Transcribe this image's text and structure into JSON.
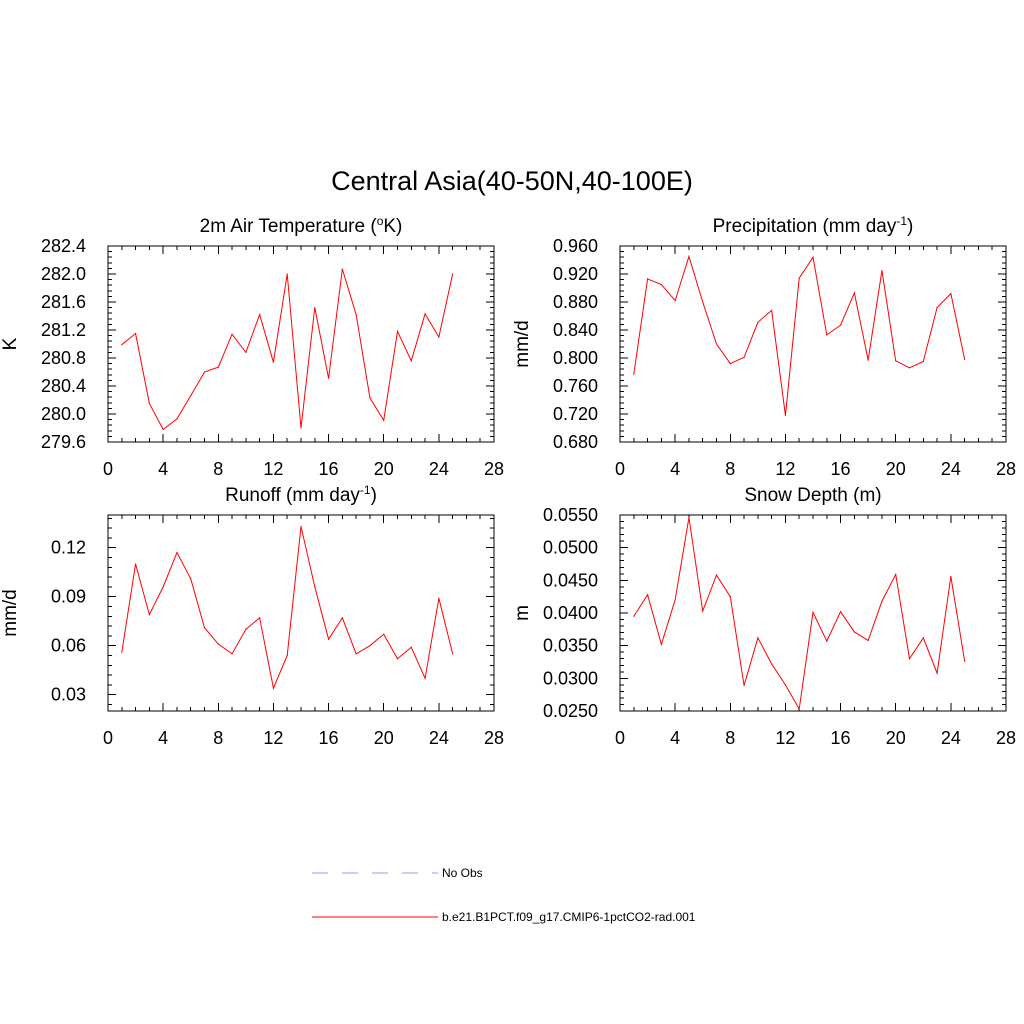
{
  "figure": {
    "title": "Central Asia(40-50N,40-100E)"
  },
  "colors": {
    "model": "#ff0000",
    "obs": "#9999ff"
  },
  "legend": [
    {
      "label": "No Obs",
      "style": "dashed",
      "color": "#9999ff"
    },
    {
      "label": "b.e21.B1PCT.f09_g17.CMIP6-1pctCO2-rad.001",
      "style": "solid",
      "color": "#ff0000"
    }
  ],
  "chart_data": [
    {
      "type": "line",
      "title": "2m Air Temperature (",
      "title_sup": "o",
      "title_end": "K)",
      "ylabel": "K",
      "xlim": [
        0,
        28
      ],
      "ylim": [
        279.6,
        282.4
      ],
      "xticks": [
        0,
        4,
        8,
        12,
        16,
        20,
        24,
        28
      ],
      "yticks": [
        279.6,
        280.0,
        280.4,
        280.8,
        281.2,
        281.6,
        282.0,
        282.4
      ],
      "ytick_labels": [
        "279.6",
        "280.0",
        "280.4",
        "280.8",
        "281.2",
        "281.6",
        "282.0",
        "282.4"
      ],
      "series": [
        {
          "x": [
            1,
            2,
            3,
            4,
            5,
            6,
            7,
            8,
            9,
            10,
            11,
            12,
            13,
            14,
            15,
            16,
            17,
            18,
            19,
            20,
            21,
            22,
            23,
            24,
            25
          ],
          "values": [
            280.99,
            281.15,
            280.15,
            279.78,
            279.93,
            280.26,
            280.6,
            280.67,
            281.14,
            280.88,
            281.42,
            280.74,
            282.0,
            279.8,
            281.52,
            280.51,
            282.07,
            281.42,
            280.23,
            279.91,
            281.18,
            280.76,
            281.43,
            281.1,
            282.0
          ]
        }
      ]
    },
    {
      "type": "line",
      "title": "Precipitation (mm day",
      "title_sup": "-1",
      "title_end": ")",
      "ylabel": "mm/d",
      "xlim": [
        0,
        28
      ],
      "ylim": [
        0.68,
        0.96
      ],
      "xticks": [
        0,
        4,
        8,
        12,
        16,
        20,
        24,
        28
      ],
      "yticks": [
        0.68,
        0.72,
        0.76,
        0.8,
        0.84,
        0.88,
        0.92,
        0.96
      ],
      "ytick_labels": [
        "0.680",
        "0.720",
        "0.760",
        "0.800",
        "0.840",
        "0.880",
        "0.920",
        "0.960"
      ],
      "series": [
        {
          "x": [
            1,
            2,
            3,
            4,
            5,
            6,
            7,
            8,
            9,
            10,
            11,
            12,
            13,
            14,
            15,
            16,
            17,
            18,
            19,
            20,
            21,
            22,
            23,
            24,
            25
          ],
          "values": [
            0.777,
            0.913,
            0.905,
            0.882,
            0.945,
            0.88,
            0.82,
            0.792,
            0.801,
            0.851,
            0.868,
            0.718,
            0.914,
            0.944,
            0.833,
            0.847,
            0.893,
            0.797,
            0.925,
            0.796,
            0.786,
            0.795,
            0.872,
            0.892,
            0.798
          ]
        }
      ]
    },
    {
      "type": "line",
      "title": "Runoff (mm day",
      "title_sup": "-1",
      "title_end": ")",
      "ylabel": "mm/d",
      "xlim": [
        0,
        28
      ],
      "ylim": [
        0.02,
        0.14
      ],
      "xticks": [
        0,
        4,
        8,
        12,
        16,
        20,
        24,
        28
      ],
      "yticks": [
        0.03,
        0.06,
        0.09,
        0.12
      ],
      "ytick_labels": [
        "0.03",
        "0.06",
        "0.09",
        "0.12"
      ],
      "series": [
        {
          "x": [
            1,
            2,
            3,
            4,
            5,
            6,
            7,
            8,
            9,
            10,
            11,
            12,
            13,
            14,
            15,
            16,
            17,
            18,
            19,
            20,
            21,
            22,
            23,
            24,
            25
          ],
          "values": [
            0.056,
            0.11,
            0.079,
            0.096,
            0.117,
            0.101,
            0.071,
            0.061,
            0.055,
            0.07,
            0.077,
            0.034,
            0.054,
            0.133,
            0.096,
            0.064,
            0.077,
            0.055,
            0.06,
            0.067,
            0.052,
            0.059,
            0.04,
            0.089,
            0.055
          ]
        }
      ]
    },
    {
      "type": "line",
      "title": "Snow Depth (m)",
      "title_sup": "",
      "title_end": "",
      "ylabel": "m",
      "xlim": [
        0,
        28
      ],
      "ylim": [
        0.025,
        0.055
      ],
      "xticks": [
        0,
        4,
        8,
        12,
        16,
        20,
        24,
        28
      ],
      "yticks": [
        0.025,
        0.03,
        0.035,
        0.04,
        0.045,
        0.05,
        0.055
      ],
      "ytick_labels": [
        "0.0250",
        "0.0300",
        "0.0350",
        "0.0400",
        "0.0450",
        "0.0500",
        "0.0550"
      ],
      "series": [
        {
          "x": [
            1,
            2,
            3,
            4,
            5,
            6,
            7,
            8,
            9,
            10,
            11,
            12,
            13,
            14,
            15,
            16,
            17,
            18,
            19,
            20,
            21,
            22,
            23,
            24,
            25
          ],
          "values": [
            0.0395,
            0.0428,
            0.0352,
            0.042,
            0.0546,
            0.0403,
            0.0458,
            0.0425,
            0.0289,
            0.0362,
            0.0322,
            0.029,
            0.0253,
            0.0401,
            0.0357,
            0.0402,
            0.0371,
            0.0358,
            0.0418,
            0.0459,
            0.033,
            0.0362,
            0.0308,
            0.0456,
            0.0326
          ]
        }
      ]
    }
  ]
}
